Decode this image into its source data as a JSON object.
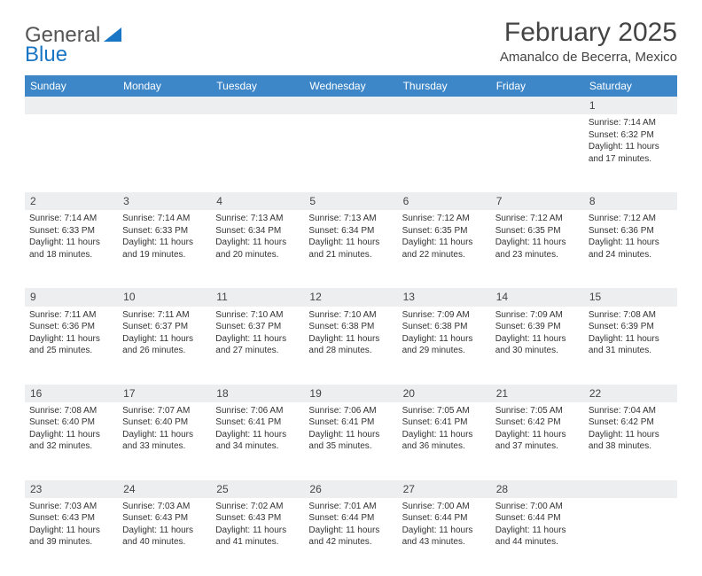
{
  "logo": {
    "text1": "General",
    "text2": "Blue"
  },
  "title": "February 2025",
  "location": "Amanalco de Becerra, Mexico",
  "colors": {
    "header_bg": "#3d87c9",
    "header_text": "#ffffff",
    "daynum_bg": "#eceeef",
    "text": "#333333",
    "logo_blue": "#1976c5"
  },
  "weekdays": [
    "Sunday",
    "Monday",
    "Tuesday",
    "Wednesday",
    "Thursday",
    "Friday",
    "Saturday"
  ],
  "weeks": [
    [
      null,
      null,
      null,
      null,
      null,
      null,
      {
        "d": "1",
        "sr": "7:14 AM",
        "ss": "6:32 PM",
        "dl": "11 hours and 17 minutes."
      }
    ],
    [
      {
        "d": "2",
        "sr": "7:14 AM",
        "ss": "6:33 PM",
        "dl": "11 hours and 18 minutes."
      },
      {
        "d": "3",
        "sr": "7:14 AM",
        "ss": "6:33 PM",
        "dl": "11 hours and 19 minutes."
      },
      {
        "d": "4",
        "sr": "7:13 AM",
        "ss": "6:34 PM",
        "dl": "11 hours and 20 minutes."
      },
      {
        "d": "5",
        "sr": "7:13 AM",
        "ss": "6:34 PM",
        "dl": "11 hours and 21 minutes."
      },
      {
        "d": "6",
        "sr": "7:12 AM",
        "ss": "6:35 PM",
        "dl": "11 hours and 22 minutes."
      },
      {
        "d": "7",
        "sr": "7:12 AM",
        "ss": "6:35 PM",
        "dl": "11 hours and 23 minutes."
      },
      {
        "d": "8",
        "sr": "7:12 AM",
        "ss": "6:36 PM",
        "dl": "11 hours and 24 minutes."
      }
    ],
    [
      {
        "d": "9",
        "sr": "7:11 AM",
        "ss": "6:36 PM",
        "dl": "11 hours and 25 minutes."
      },
      {
        "d": "10",
        "sr": "7:11 AM",
        "ss": "6:37 PM",
        "dl": "11 hours and 26 minutes."
      },
      {
        "d": "11",
        "sr": "7:10 AM",
        "ss": "6:37 PM",
        "dl": "11 hours and 27 minutes."
      },
      {
        "d": "12",
        "sr": "7:10 AM",
        "ss": "6:38 PM",
        "dl": "11 hours and 28 minutes."
      },
      {
        "d": "13",
        "sr": "7:09 AM",
        "ss": "6:38 PM",
        "dl": "11 hours and 29 minutes."
      },
      {
        "d": "14",
        "sr": "7:09 AM",
        "ss": "6:39 PM",
        "dl": "11 hours and 30 minutes."
      },
      {
        "d": "15",
        "sr": "7:08 AM",
        "ss": "6:39 PM",
        "dl": "11 hours and 31 minutes."
      }
    ],
    [
      {
        "d": "16",
        "sr": "7:08 AM",
        "ss": "6:40 PM",
        "dl": "11 hours and 32 minutes."
      },
      {
        "d": "17",
        "sr": "7:07 AM",
        "ss": "6:40 PM",
        "dl": "11 hours and 33 minutes."
      },
      {
        "d": "18",
        "sr": "7:06 AM",
        "ss": "6:41 PM",
        "dl": "11 hours and 34 minutes."
      },
      {
        "d": "19",
        "sr": "7:06 AM",
        "ss": "6:41 PM",
        "dl": "11 hours and 35 minutes."
      },
      {
        "d": "20",
        "sr": "7:05 AM",
        "ss": "6:41 PM",
        "dl": "11 hours and 36 minutes."
      },
      {
        "d": "21",
        "sr": "7:05 AM",
        "ss": "6:42 PM",
        "dl": "11 hours and 37 minutes."
      },
      {
        "d": "22",
        "sr": "7:04 AM",
        "ss": "6:42 PM",
        "dl": "11 hours and 38 minutes."
      }
    ],
    [
      {
        "d": "23",
        "sr": "7:03 AM",
        "ss": "6:43 PM",
        "dl": "11 hours and 39 minutes."
      },
      {
        "d": "24",
        "sr": "7:03 AM",
        "ss": "6:43 PM",
        "dl": "11 hours and 40 minutes."
      },
      {
        "d": "25",
        "sr": "7:02 AM",
        "ss": "6:43 PM",
        "dl": "11 hours and 41 minutes."
      },
      {
        "d": "26",
        "sr": "7:01 AM",
        "ss": "6:44 PM",
        "dl": "11 hours and 42 minutes."
      },
      {
        "d": "27",
        "sr": "7:00 AM",
        "ss": "6:44 PM",
        "dl": "11 hours and 43 minutes."
      },
      {
        "d": "28",
        "sr": "7:00 AM",
        "ss": "6:44 PM",
        "dl": "11 hours and 44 minutes."
      },
      null
    ]
  ],
  "labels": {
    "sunrise": "Sunrise:",
    "sunset": "Sunset:",
    "daylight": "Daylight:"
  }
}
